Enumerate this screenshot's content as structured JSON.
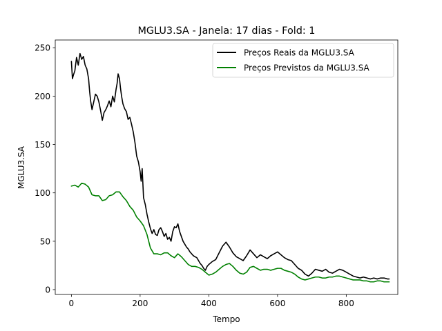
{
  "chart_data": {
    "type": "line",
    "title": "MGLU3.SA - Janela: 17 dias - Fold: 1",
    "xlabel": "Tempo",
    "ylabel": "MGLU3.SA",
    "xlim": [
      -47,
      950
    ],
    "ylim": [
      -5,
      258
    ],
    "xticks": [
      0,
      200,
      400,
      600,
      800
    ],
    "yticks": [
      0,
      50,
      100,
      150,
      200,
      250
    ],
    "grid": false,
    "legend_position": "top-right",
    "series": [
      {
        "name": "Preços Reais da MGLU3.SA",
        "color": "#000000",
        "x": [
          0,
          3,
          6,
          10,
          15,
          20,
          25,
          30,
          35,
          40,
          45,
          50,
          53,
          56,
          60,
          65,
          70,
          75,
          80,
          85,
          90,
          95,
          100,
          105,
          110,
          115,
          120,
          125,
          130,
          133,
          136,
          140,
          143,
          146,
          150,
          155,
          160,
          165,
          170,
          175,
          180,
          185,
          190,
          195,
          200,
          203,
          206,
          210,
          215,
          220,
          225,
          230,
          235,
          240,
          245,
          250,
          255,
          260,
          265,
          270,
          275,
          280,
          285,
          290,
          295,
          300,
          305,
          310,
          315,
          320,
          325,
          330,
          335,
          340,
          345,
          350,
          355,
          360,
          365,
          370,
          375,
          380,
          385,
          390,
          395,
          400,
          410,
          420,
          430,
          440,
          450,
          460,
          470,
          480,
          490,
          500,
          510,
          520,
          530,
          540,
          550,
          560,
          570,
          580,
          590,
          600,
          610,
          620,
          630,
          640,
          650,
          660,
          670,
          680,
          690,
          700,
          710,
          720,
          730,
          740,
          750,
          760,
          770,
          780,
          790,
          800,
          810,
          820,
          830,
          840,
          850,
          860,
          870,
          880,
          890,
          900,
          910,
          920,
          925
        ],
        "y": [
          236,
          218,
          222,
          226,
          240,
          232,
          244,
          238,
          241,
          232,
          228,
          218,
          205,
          195,
          186,
          194,
          202,
          200,
          194,
          185,
          175,
          183,
          186,
          190,
          195,
          189,
          200,
          194,
          207,
          213,
          223,
          218,
          208,
          200,
          192,
          187,
          184,
          176,
          178,
          171,
          163,
          152,
          138,
          132,
          122,
          112,
          125,
          95,
          88,
          78,
          70,
          63,
          58,
          62,
          57,
          56,
          62,
          64,
          60,
          55,
          58,
          52,
          54,
          50,
          60,
          65,
          64,
          68,
          60,
          55,
          50,
          47,
          44,
          42,
          39,
          37,
          35,
          34,
          33,
          30,
          27,
          25,
          22,
          20,
          24,
          26,
          29,
          31,
          38,
          45,
          49,
          44,
          38,
          34,
          32,
          30,
          35,
          41,
          37,
          33,
          36,
          34,
          32,
          35,
          37,
          39,
          36,
          33,
          31,
          30,
          26,
          22,
          20,
          16,
          14,
          17,
          21,
          20,
          19,
          21,
          18,
          17,
          19,
          21,
          20,
          18,
          16,
          14,
          13,
          12,
          13,
          12,
          11,
          12,
          11,
          12,
          12,
          11,
          11
        ]
      },
      {
        "name": "Preços Previstos da MGLU3.SA",
        "color": "#008000",
        "x": [
          0,
          10,
          20,
          30,
          40,
          50,
          60,
          70,
          80,
          90,
          100,
          110,
          120,
          130,
          140,
          150,
          160,
          170,
          180,
          190,
          200,
          210,
          220,
          230,
          240,
          250,
          260,
          270,
          280,
          290,
          300,
          310,
          320,
          330,
          340,
          350,
          360,
          370,
          380,
          390,
          400,
          410,
          420,
          430,
          440,
          450,
          460,
          470,
          480,
          490,
          500,
          510,
          520,
          530,
          540,
          550,
          560,
          570,
          580,
          590,
          600,
          610,
          620,
          630,
          640,
          650,
          660,
          670,
          680,
          690,
          700,
          710,
          720,
          730,
          740,
          750,
          760,
          770,
          780,
          790,
          800,
          810,
          820,
          830,
          840,
          850,
          860,
          870,
          880,
          890,
          900,
          910,
          920,
          925
        ],
        "y": [
          107,
          108,
          106,
          110,
          109,
          106,
          98,
          97,
          97,
          92,
          93,
          97,
          98,
          101,
          101,
          96,
          92,
          86,
          82,
          75,
          71,
          66,
          57,
          43,
          37,
          37,
          36,
          38,
          38,
          35,
          33,
          37,
          34,
          30,
          26,
          24,
          24,
          23,
          21,
          18,
          15,
          16,
          18,
          21,
          24,
          26,
          27,
          24,
          20,
          17,
          16,
          18,
          23,
          24,
          22,
          20,
          21,
          21,
          20,
          21,
          22,
          22,
          20,
          19,
          18,
          16,
          13,
          11,
          10,
          11,
          12,
          13,
          13,
          12,
          12,
          13,
          13,
          14,
          14,
          13,
          12,
          11,
          10,
          10,
          10,
          9,
          9,
          8,
          8,
          9,
          9,
          8,
          8,
          8
        ]
      }
    ]
  }
}
